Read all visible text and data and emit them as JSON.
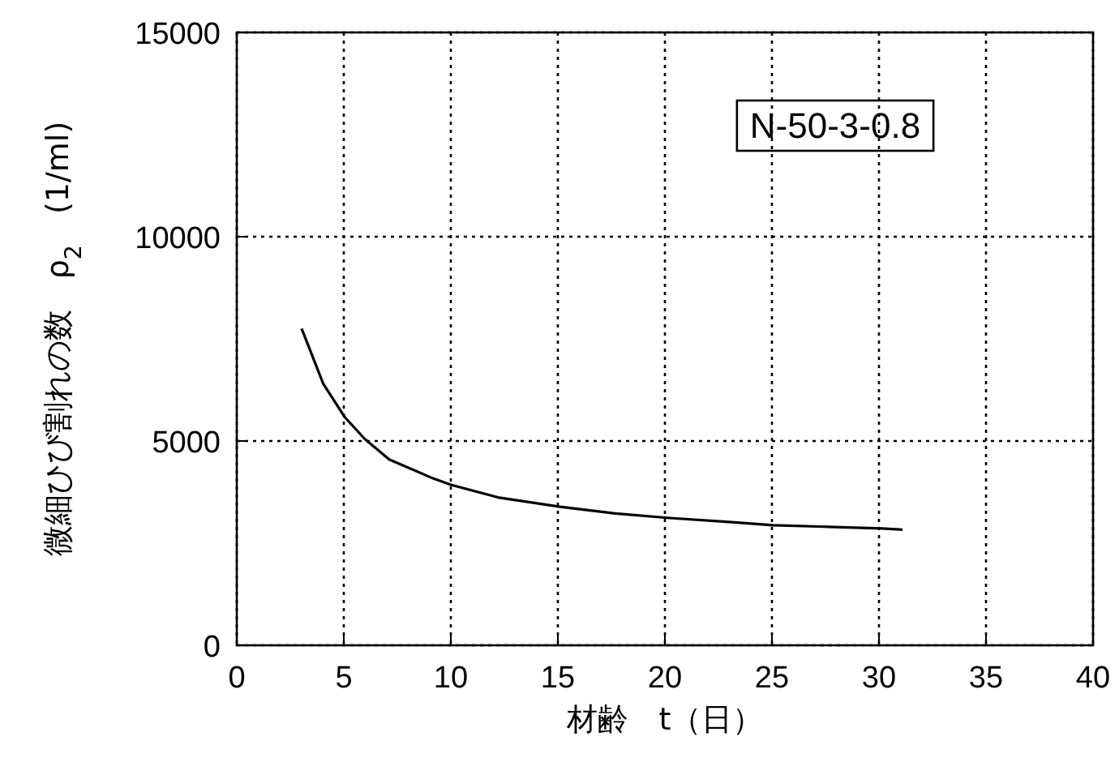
{
  "chart_data": {
    "type": "line",
    "xlabel": "材齢　t（日）",
    "ylabel": "微細ひび割れの数　ρ$_{2}$　(1/ml)",
    "annotations": [
      "N-50-3-0.8"
    ],
    "x": [
      3.03,
      4.04,
      5.05,
      5.98,
      7.12,
      9.14,
      10.0,
      12.2,
      15.1,
      17.6,
      20.1,
      23.0,
      25.05,
      27.6,
      30.15,
      31.1
    ],
    "series": [
      {
        "color": "#000000",
        "values": [
          7750,
          6400,
          5580,
          5050,
          4550,
          4090,
          3930,
          3620,
          3390,
          3230,
          3120,
          3020,
          2940,
          2900,
          2860,
          2830
        ]
      }
    ],
    "xlim": [
      0,
      40
    ],
    "ylim": [
      0,
      15000
    ],
    "xticks": [
      0,
      5,
      10,
      15,
      20,
      25,
      30,
      35,
      40
    ],
    "yticks": [
      0,
      5000,
      10000,
      15000
    ],
    "grid": true,
    "marker": "none",
    "line_style": "solid"
  }
}
